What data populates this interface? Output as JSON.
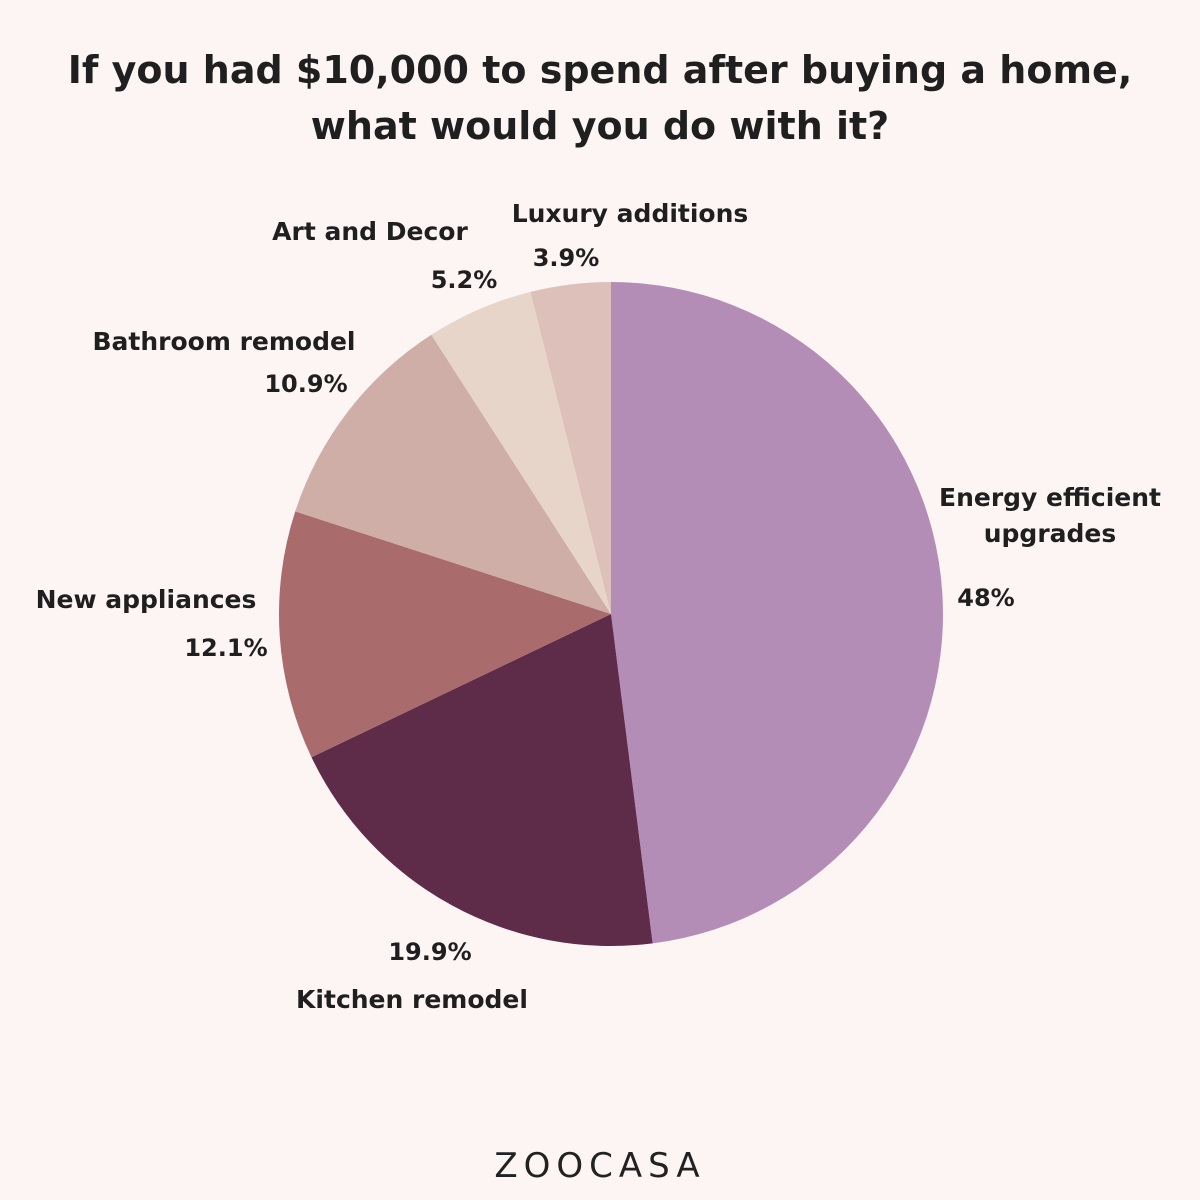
{
  "chart_data": {
    "type": "pie",
    "title_lines": [
      "If you had $10,000 to spend after buying a home,",
      "what would you do with it?"
    ],
    "slices": [
      {
        "label": "Energy efficient upgrades",
        "label_lines": [
          "Energy efficient",
          "upgrades"
        ],
        "value": 48,
        "value_label": "48%",
        "color": "#b48db7"
      },
      {
        "label": "Kitchen remodel",
        "label_lines": [
          "Kitchen remodel"
        ],
        "value": 19.9,
        "value_label": "19.9%",
        "color": "#5e2c48"
      },
      {
        "label": "New appliances",
        "label_lines": [
          "New appliances"
        ],
        "value": 12.1,
        "value_label": "12.1%",
        "color": "#a96b6b"
      },
      {
        "label": "Bathroom remodel",
        "label_lines": [
          "Bathroom remodel"
        ],
        "value": 10.9,
        "value_label": "10.9%",
        "color": "#d0aea8"
      },
      {
        "label": "Art and Decor",
        "label_lines": [
          "Art and Decor"
        ],
        "value": 5.2,
        "value_label": "5.2%",
        "color": "#e8d5ca"
      },
      {
        "label": "Luxury additions",
        "label_lines": [
          "Luxury additions"
        ],
        "value": 3.9,
        "value_label": "3.9%",
        "color": "#dcc0b9"
      }
    ],
    "start_angle": "top",
    "direction": "clockwise"
  },
  "brand": {
    "logo_text": "ZOOCASA"
  }
}
